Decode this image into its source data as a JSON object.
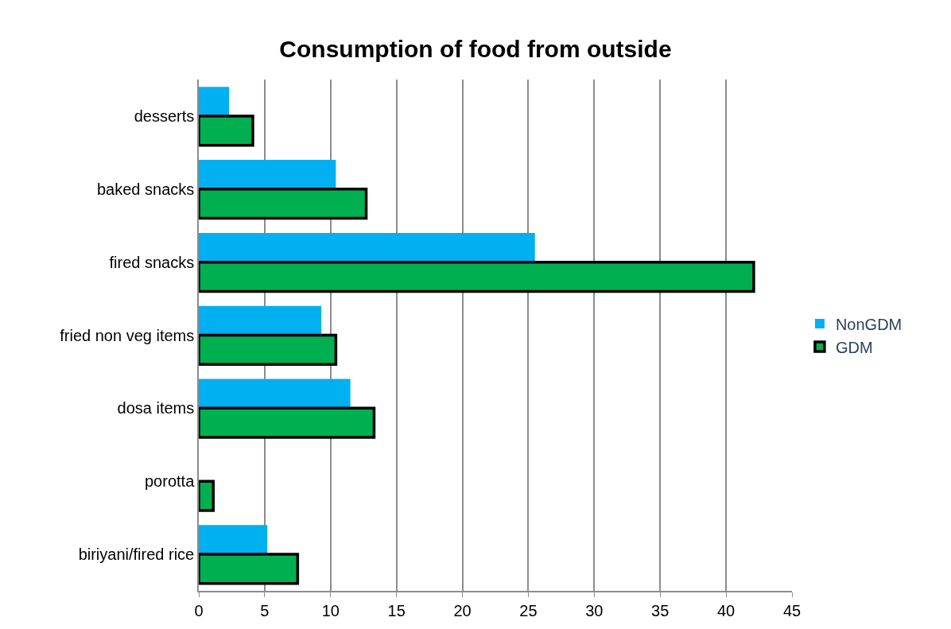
{
  "chart_data": {
    "type": "bar",
    "orientation": "horizontal",
    "title": "Consumption of food from outside",
    "categories": [
      "desserts",
      "baked snacks",
      "fired snacks",
      "fried non veg items",
      "dosa items",
      "porotta",
      "biriyani/fired rice"
    ],
    "series": [
      {
        "name": "NonGDM",
        "color": "#00b0f0",
        "values": [
          2.3,
          10.4,
          25.5,
          9.3,
          11.5,
          0,
          5.2
        ]
      },
      {
        "name": "GDM",
        "color": "#00b050",
        "values": [
          4.1,
          12.7,
          42.1,
          10.4,
          13.3,
          1.1,
          7.5
        ]
      }
    ],
    "xlim": [
      0,
      45
    ],
    "xticks": [
      0,
      5,
      10,
      15,
      20,
      25,
      30,
      35,
      40,
      45
    ],
    "grid": "x",
    "legend": "right"
  }
}
